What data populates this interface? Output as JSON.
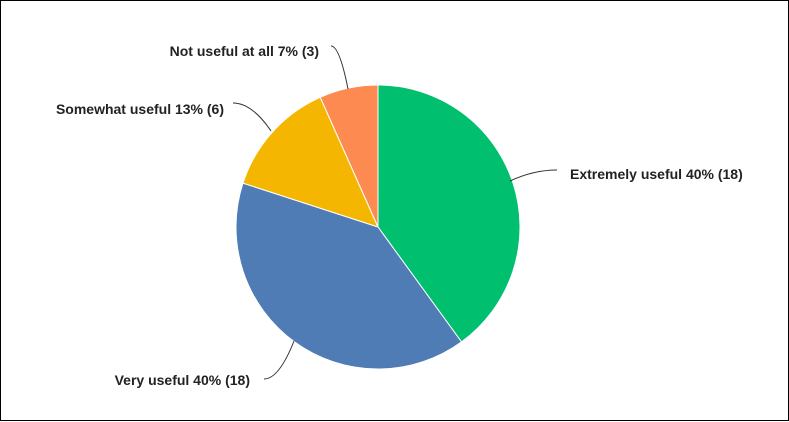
{
  "chart_data": {
    "type": "pie",
    "title": "",
    "slices": [
      {
        "label": "Extremely useful 40% (18)",
        "category": "Extremely useful",
        "percent": 40,
        "count": 18,
        "color": "#00bf6f"
      },
      {
        "label": "Very useful 40% (18)",
        "category": "Very useful",
        "percent": 40,
        "count": 18,
        "color": "#507cb6"
      },
      {
        "label": "Somewhat useful 13% (6)",
        "category": "Somewhat useful",
        "percent": 13,
        "count": 6,
        "color": "#f4b600"
      },
      {
        "label": "Not useful at all 7% (3)",
        "category": "Not useful at all",
        "percent": 7,
        "count": 3,
        "color": "#fd8a51"
      }
    ],
    "legend": "none",
    "start_angle": "12 o'clock, clockwise"
  }
}
